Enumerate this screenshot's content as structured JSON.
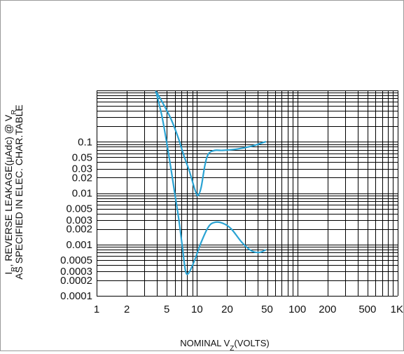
{
  "chart_data": {
    "type": "line",
    "title": "",
    "xlabel_parts": [
      "NOMINAL V",
      "Z",
      "(VOLTS)"
    ],
    "ylabel_line1_parts": [
      "I",
      "R",
      ", REVERSE LEAKAGE(μAdc) @ V",
      "R"
    ],
    "ylabel_line2": "AS SPECIFIED IN ELEC. CHAR.TABLE",
    "x_scale": "log",
    "y_scale": "log",
    "xlim": [
      1,
      1000
    ],
    "ylim": [
      0.0001,
      1
    ],
    "grid": true,
    "x_ticks": [
      {
        "value": 1,
        "label": "1"
      },
      {
        "value": 2,
        "label": "2"
      },
      {
        "value": 5,
        "label": "5"
      },
      {
        "value": 10,
        "label": "10"
      },
      {
        "value": 20,
        "label": "20"
      },
      {
        "value": 50,
        "label": "50"
      },
      {
        "value": 100,
        "label": "100"
      },
      {
        "value": 200,
        "label": "200"
      },
      {
        "value": 500,
        "label": "500"
      },
      {
        "value": 1000,
        "label": "1K"
      }
    ],
    "y_ticks": [
      {
        "value": 0.1,
        "label": "0.1"
      },
      {
        "value": 0.05,
        "label": "0.05"
      },
      {
        "value": 0.03,
        "label": "0.03"
      },
      {
        "value": 0.02,
        "label": "0.02"
      },
      {
        "value": 0.01,
        "label": "0.01"
      },
      {
        "value": 0.005,
        "label": "0.005"
      },
      {
        "value": 0.003,
        "label": "0.003"
      },
      {
        "value": 0.002,
        "label": "0.002"
      },
      {
        "value": 0.001,
        "label": "0.001"
      },
      {
        "value": 0.0005,
        "label": "0.0005"
      },
      {
        "value": 0.0003,
        "label": "0.0003"
      },
      {
        "value": 0.0002,
        "label": "0.0002"
      },
      {
        "value": 0.0001,
        "label": "0.0001"
      }
    ],
    "series": [
      {
        "color": "#2aa3d3",
        "points": [
          [
            3.9,
            0.95
          ],
          [
            4.5,
            0.6
          ],
          [
            5.5,
            0.28
          ],
          [
            6.5,
            0.12
          ],
          [
            7.5,
            0.05
          ],
          [
            8.5,
            0.025
          ],
          [
            9.5,
            0.012
          ],
          [
            10.2,
            0.009
          ],
          [
            11,
            0.013
          ],
          [
            12,
            0.035
          ],
          [
            13,
            0.058
          ],
          [
            15,
            0.068
          ],
          [
            18,
            0.068
          ],
          [
            25,
            0.072
          ],
          [
            35,
            0.082
          ],
          [
            48,
            0.1
          ]
        ]
      },
      {
        "color": "#2aa3d3",
        "points": [
          [
            3.9,
            0.95
          ],
          [
            4.5,
            0.3
          ],
          [
            5.2,
            0.06
          ],
          [
            6,
            0.01
          ],
          [
            6.6,
            0.003
          ],
          [
            7.2,
            0.0008
          ],
          [
            7.7,
            0.0003
          ],
          [
            8.3,
            0.00028
          ],
          [
            9.5,
            0.0005
          ],
          [
            11,
            0.0011
          ],
          [
            13,
            0.0022
          ],
          [
            15,
            0.0027
          ],
          [
            18,
            0.0026
          ],
          [
            22,
            0.002
          ],
          [
            28,
            0.0011
          ],
          [
            35,
            0.00075
          ],
          [
            42,
            0.0007
          ],
          [
            48,
            0.00078
          ]
        ]
      }
    ]
  }
}
